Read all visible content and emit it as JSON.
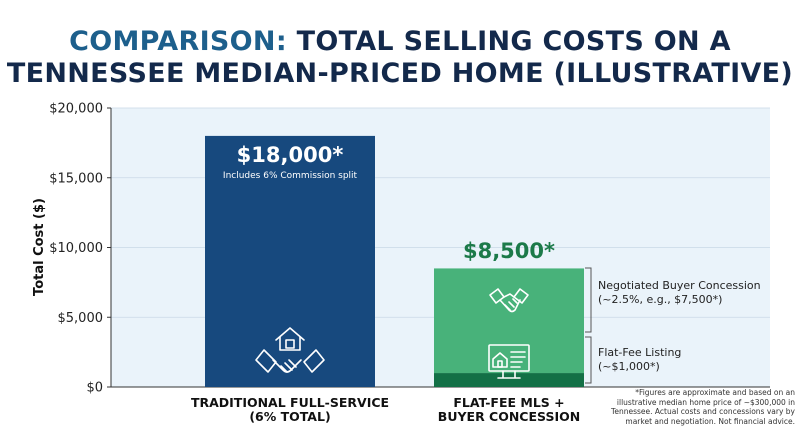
{
  "title": {
    "accent": "COMPARISON:",
    "line1_rest": "TOTAL SELLING COSTS ON A",
    "line2": "TENNESSEE MEDIAN-PRICED HOME (ILLUSTRATIVE)"
  },
  "colors": {
    "title_dark": "#13294b",
    "title_accent": "#1d5f8c",
    "bar_traditional": "#17497e",
    "segment_concession": "#48b27a",
    "segment_flatfee": "#137046",
    "value_green": "#1c7a49",
    "plot_background": "#eaf3fa"
  },
  "chart_data": {
    "type": "bar",
    "stacked": true,
    "ylabel": "Total Cost ($)",
    "ylim": [
      0,
      20000
    ],
    "yticks": [
      0,
      5000,
      10000,
      15000,
      20000
    ],
    "ytick_labels": [
      "$0",
      "$5,000",
      "$10,000",
      "$15,000",
      "$20,000"
    ],
    "grid": true,
    "categories": [
      {
        "line1": "TRADITIONAL FULL-SERVICE",
        "line2": "(6% TOTAL)"
      },
      {
        "line1": "FLAT-FEE MLS +",
        "line2": "BUYER CONCESSION"
      }
    ],
    "series": [
      {
        "key": "traditional",
        "values": [
          18000,
          0
        ],
        "icon": "house-handshake-icon"
      },
      {
        "key": "flatfee",
        "values": [
          0,
          1000
        ],
        "icon": "computer-listing-icon",
        "label_line1": "Flat-Fee Listing",
        "label_line2": "(~$1,000*)"
      },
      {
        "key": "concession",
        "values": [
          0,
          7500
        ],
        "icon": "handshake-icon",
        "label_line1": "Negotiated Buyer Concession",
        "label_line2": "(~2.5%, e.g., $7,500*)"
      }
    ],
    "totals": [
      18000,
      8500
    ],
    "total_labels": [
      "$18,000*",
      "$8,500*"
    ],
    "traditional_sublabel": "Includes 6% Commission split"
  },
  "footnote": [
    "*Figures are approximate and based on an",
    "illustrative median home price of ~$300,000 in",
    "Tennessee. Actual costs and concessions vary by",
    "market and negotiation. Not financial advice."
  ]
}
